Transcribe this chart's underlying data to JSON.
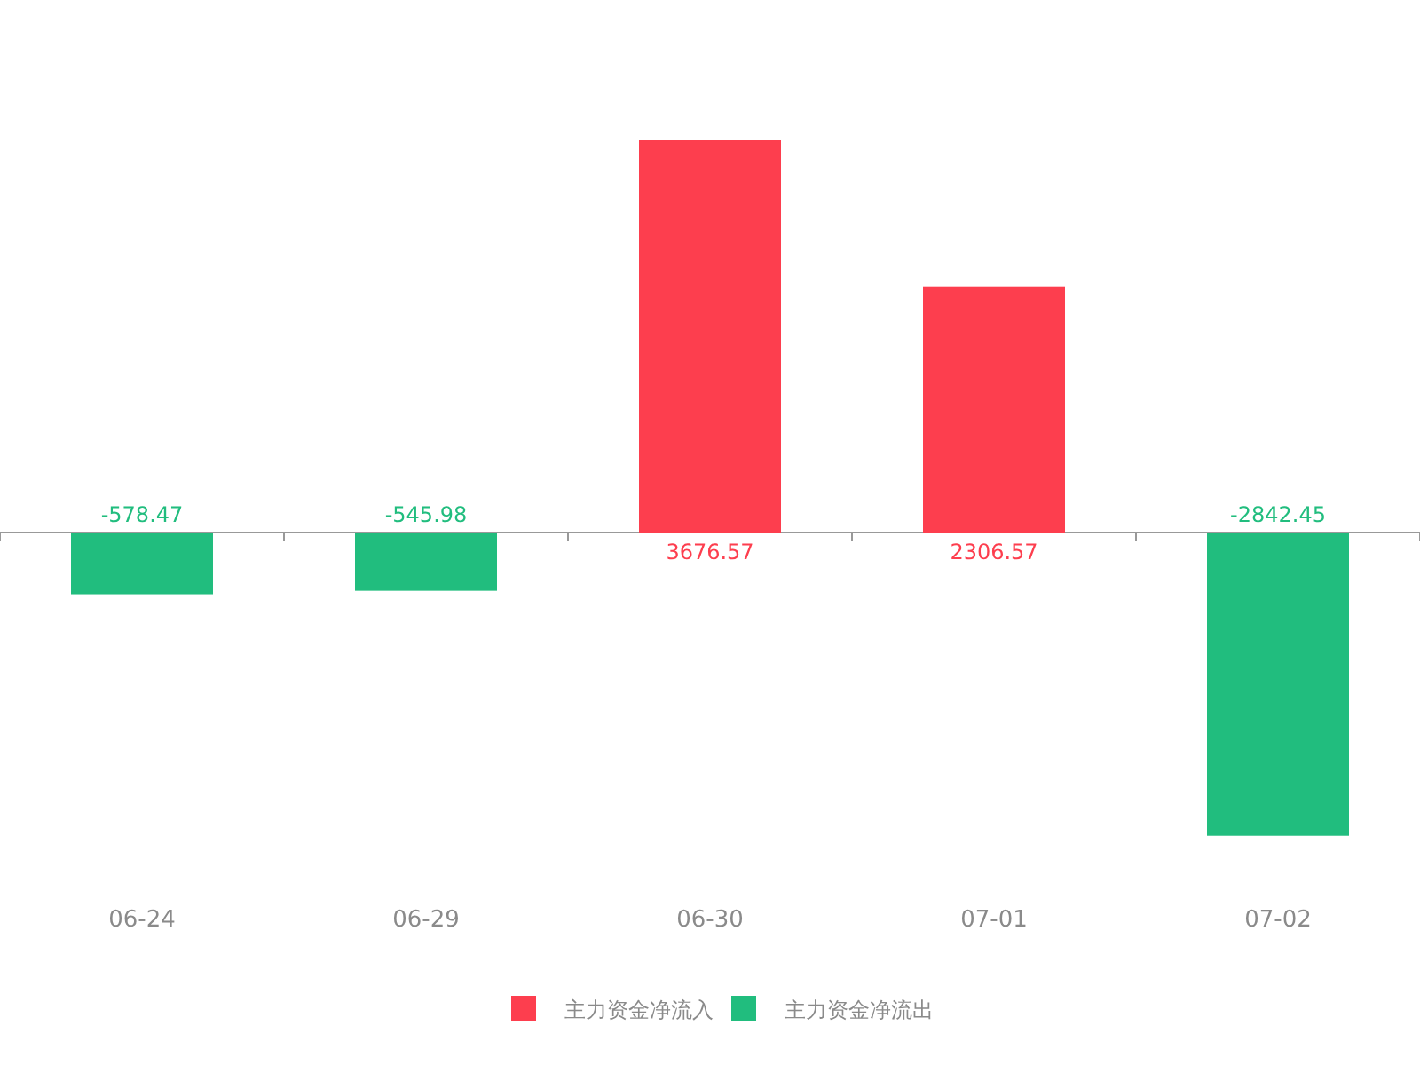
{
  "chart_data": {
    "type": "bar",
    "stacked": true,
    "data_labels": true,
    "legend": "bottom",
    "categories": [
      "06-24",
      "06-29",
      "06-30",
      "07-01",
      "07-02"
    ],
    "series": [
      {
        "name": "主力资金净流入",
        "color": "#fd3e4e",
        "values": [
          null,
          null,
          3676.57,
          2306.57,
          null
        ]
      },
      {
        "name": "主力资金净流出",
        "color": "#21bd7e",
        "values": [
          -578.47,
          -545.98,
          null,
          null,
          -2842.45
        ]
      }
    ]
  }
}
